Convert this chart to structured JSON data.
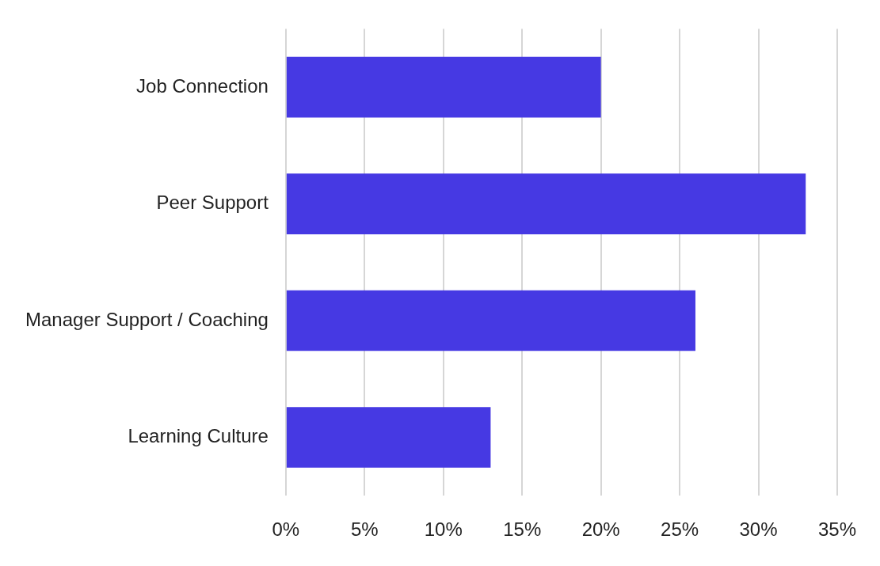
{
  "chart_data": {
    "type": "bar",
    "orientation": "horizontal",
    "categories": [
      "Job Connection",
      "Peer Support",
      "Manager Support / Coaching",
      "Learning Culture"
    ],
    "values": [
      20,
      33,
      26,
      13
    ],
    "color": "#4639e3",
    "xlim": [
      0,
      35
    ],
    "xticks": [
      {
        "value": 0,
        "label": "0%"
      },
      {
        "value": 5,
        "label": "5%"
      },
      {
        "value": 10,
        "label": "10%"
      },
      {
        "value": 15,
        "label": "15%"
      },
      {
        "value": 20,
        "label": "20%"
      },
      {
        "value": 25,
        "label": "25%"
      },
      {
        "value": 30,
        "label": "30%"
      },
      {
        "value": 35,
        "label": "35%"
      }
    ],
    "grid": "x",
    "legend": false
  }
}
